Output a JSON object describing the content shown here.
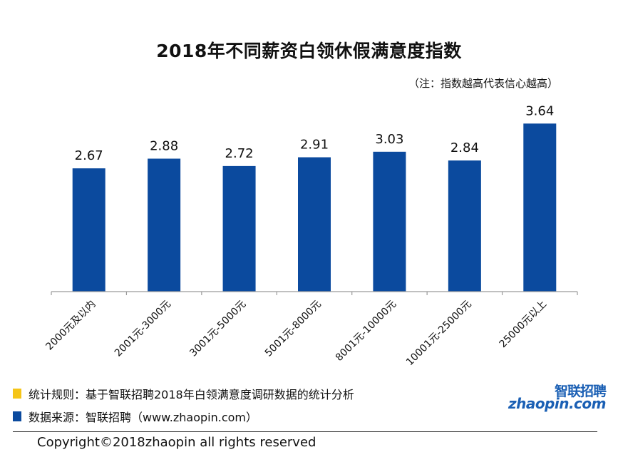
{
  "chart_data": {
    "type": "bar",
    "title": "2018年不同薪资白领休假满意度指数",
    "subtitle": "（注：指数越高代表信心越高）",
    "categories": [
      "2000元及以内",
      "2001元-3000元",
      "3001元-5000元",
      "5001元-8000元",
      "8001元-10000元",
      "10001元-25000元",
      "25000元以上"
    ],
    "values": [
      2.67,
      2.88,
      2.72,
      2.91,
      3.03,
      2.84,
      3.64
    ],
    "xlabel": "",
    "ylabel": "",
    "ylim": [
      0,
      4.0
    ],
    "grid": false,
    "bar_color": "#0B4A9E"
  },
  "legend": {
    "rule_text": "统计规则：基于智联招聘2018年白领满意度调研数据的统计分析",
    "rule_color": "#F5C518",
    "source_text": "数据来源：智联招聘（www.zhaopin.com）",
    "source_color": "#0B4A9E"
  },
  "logo": {
    "cn": "智联招聘",
    "en": "zhaopin.com"
  },
  "footer": {
    "copyright": "Copyright©2018zhaopin all rights reserved"
  }
}
